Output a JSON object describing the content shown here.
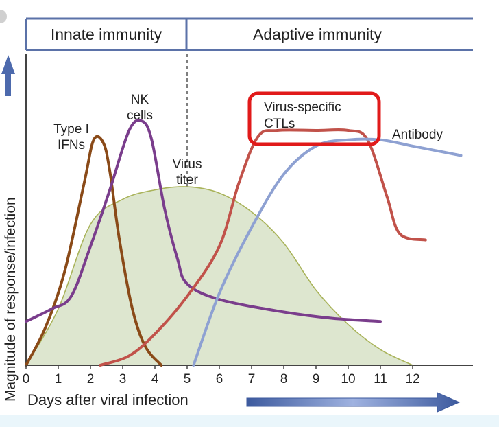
{
  "chart_data": {
    "type": "line",
    "phases": [
      "Innate immunity",
      "Adaptive immunity"
    ],
    "ylabel": "Magnitude of response/infection",
    "xlabel": "Days after viral infection",
    "xticks": [
      0,
      1,
      2,
      3,
      4,
      5,
      6,
      7,
      8,
      9,
      10,
      11,
      12
    ],
    "xlim": [
      0,
      13.5
    ],
    "ylim": [
      0,
      100
    ],
    "divider_day": 5,
    "series": [
      {
        "name": "Virus titer",
        "label_lines": [
          "Virus",
          "titer"
        ],
        "color": "#a9b35a",
        "fill": "#dde6cf",
        "points": [
          [
            0,
            0
          ],
          [
            1,
            18
          ],
          [
            2,
            45
          ],
          [
            3,
            53
          ],
          [
            4,
            56
          ],
          [
            5,
            57
          ],
          [
            6,
            55
          ],
          [
            7,
            49
          ],
          [
            8,
            39
          ],
          [
            9,
            24
          ],
          [
            10,
            13
          ],
          [
            11,
            5
          ],
          [
            12,
            0
          ]
        ]
      },
      {
        "name": "Type I IFNs",
        "label_lines": [
          "Type I",
          "IFNs"
        ],
        "color": "#8a4a18",
        "points": [
          [
            0,
            0
          ],
          [
            0.6,
            12
          ],
          [
            1.2,
            30
          ],
          [
            1.8,
            58
          ],
          [
            2.1,
            72
          ],
          [
            2.4,
            71
          ],
          [
            2.6,
            62
          ],
          [
            2.9,
            40
          ],
          [
            3.3,
            18
          ],
          [
            3.7,
            6
          ],
          [
            4.2,
            0
          ]
        ]
      },
      {
        "name": "NK cells",
        "label_lines": [
          "NK",
          "cells"
        ],
        "color": "#7a3d8c",
        "points": [
          [
            0,
            14
          ],
          [
            0.8,
            18
          ],
          [
            1.4,
            22
          ],
          [
            2.0,
            38
          ],
          [
            2.6,
            56
          ],
          [
            3.2,
            75
          ],
          [
            3.6,
            78
          ],
          [
            3.9,
            72
          ],
          [
            4.3,
            50
          ],
          [
            4.7,
            34
          ],
          [
            5.0,
            26
          ],
          [
            6.0,
            21
          ],
          [
            8.0,
            17
          ],
          [
            9.5,
            15
          ],
          [
            11,
            14
          ]
        ]
      },
      {
        "name": "Virus-specific CTLs",
        "label_lines": [
          "Virus-specific",
          "CTLs"
        ],
        "color": "#c1524a",
        "highlight": true,
        "points": [
          [
            2.3,
            0
          ],
          [
            3.2,
            3
          ],
          [
            4.0,
            10
          ],
          [
            5.0,
            22
          ],
          [
            6.0,
            38
          ],
          [
            6.6,
            58
          ],
          [
            7.2,
            73
          ],
          [
            7.8,
            75
          ],
          [
            9.0,
            75
          ],
          [
            10.0,
            75
          ],
          [
            10.6,
            72
          ],
          [
            11.2,
            54
          ],
          [
            11.6,
            42
          ],
          [
            12.4,
            40
          ]
        ]
      },
      {
        "name": "Antibody",
        "label_lines": [
          "Antibody"
        ],
        "color": "#8ea1d2",
        "points": [
          [
            5.2,
            0
          ],
          [
            6.0,
            23
          ],
          [
            7.0,
            44
          ],
          [
            8.0,
            61
          ],
          [
            9.0,
            70
          ],
          [
            10.0,
            72
          ],
          [
            11.0,
            72
          ],
          [
            12.0,
            70
          ],
          [
            13.0,
            68
          ],
          [
            13.5,
            67
          ]
        ]
      }
    ]
  }
}
